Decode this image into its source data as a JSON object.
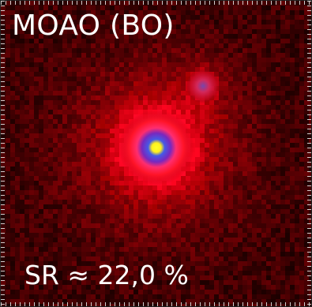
{
  "image": {
    "title": "MOAO (BO)",
    "strehl_label": "SR ≈ 22,0 %",
    "colors": {
      "background": "#050000",
      "noise": "#5a0008",
      "halo": "#ff1030",
      "ring": "#ff3a6a",
      "core_outer": "#3a2aa8",
      "core_inner": "#f2f21a",
      "text": "#ffffff"
    },
    "objects": [
      "primary-psf-star",
      "secondary-faint-star"
    ]
  }
}
